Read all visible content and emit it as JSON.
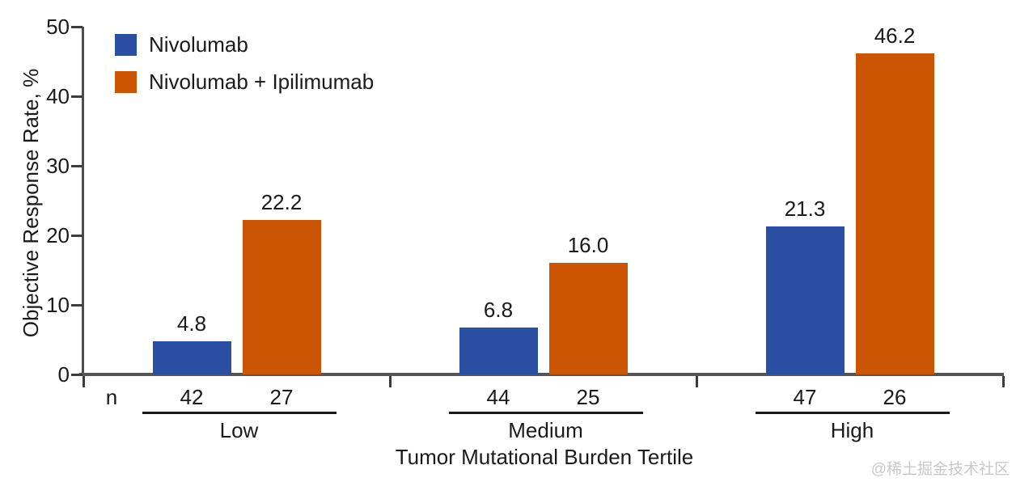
{
  "chart_data": {
    "type": "bar",
    "title": "",
    "xlabel": "Tumor Mutational Burden Tertile",
    "ylabel": "Objective Response Rate, %",
    "ylim": [
      0,
      50
    ],
    "yticks": [
      0,
      10,
      20,
      30,
      40,
      50
    ],
    "grid": false,
    "legend_position": "top-left",
    "categories": [
      "Low",
      "Medium",
      "High"
    ],
    "n_row_label": "n",
    "series": [
      {
        "name": "Nivolumab",
        "color": "#2B4FA2",
        "values": [
          4.8,
          6.8,
          21.3
        ],
        "value_labels": [
          "4.8",
          "6.8",
          "21.3"
        ],
        "n": [
          "42",
          "44",
          "47"
        ]
      },
      {
        "name": "Nivolumab + Ipilimumab",
        "color": "#CC5504",
        "values": [
          22.2,
          16.0,
          46.2
        ],
        "value_labels": [
          "22.2",
          "16.0",
          "46.2"
        ],
        "n": [
          "27",
          "25",
          "26"
        ]
      }
    ]
  },
  "watermark": "@稀土掘金技术社区"
}
